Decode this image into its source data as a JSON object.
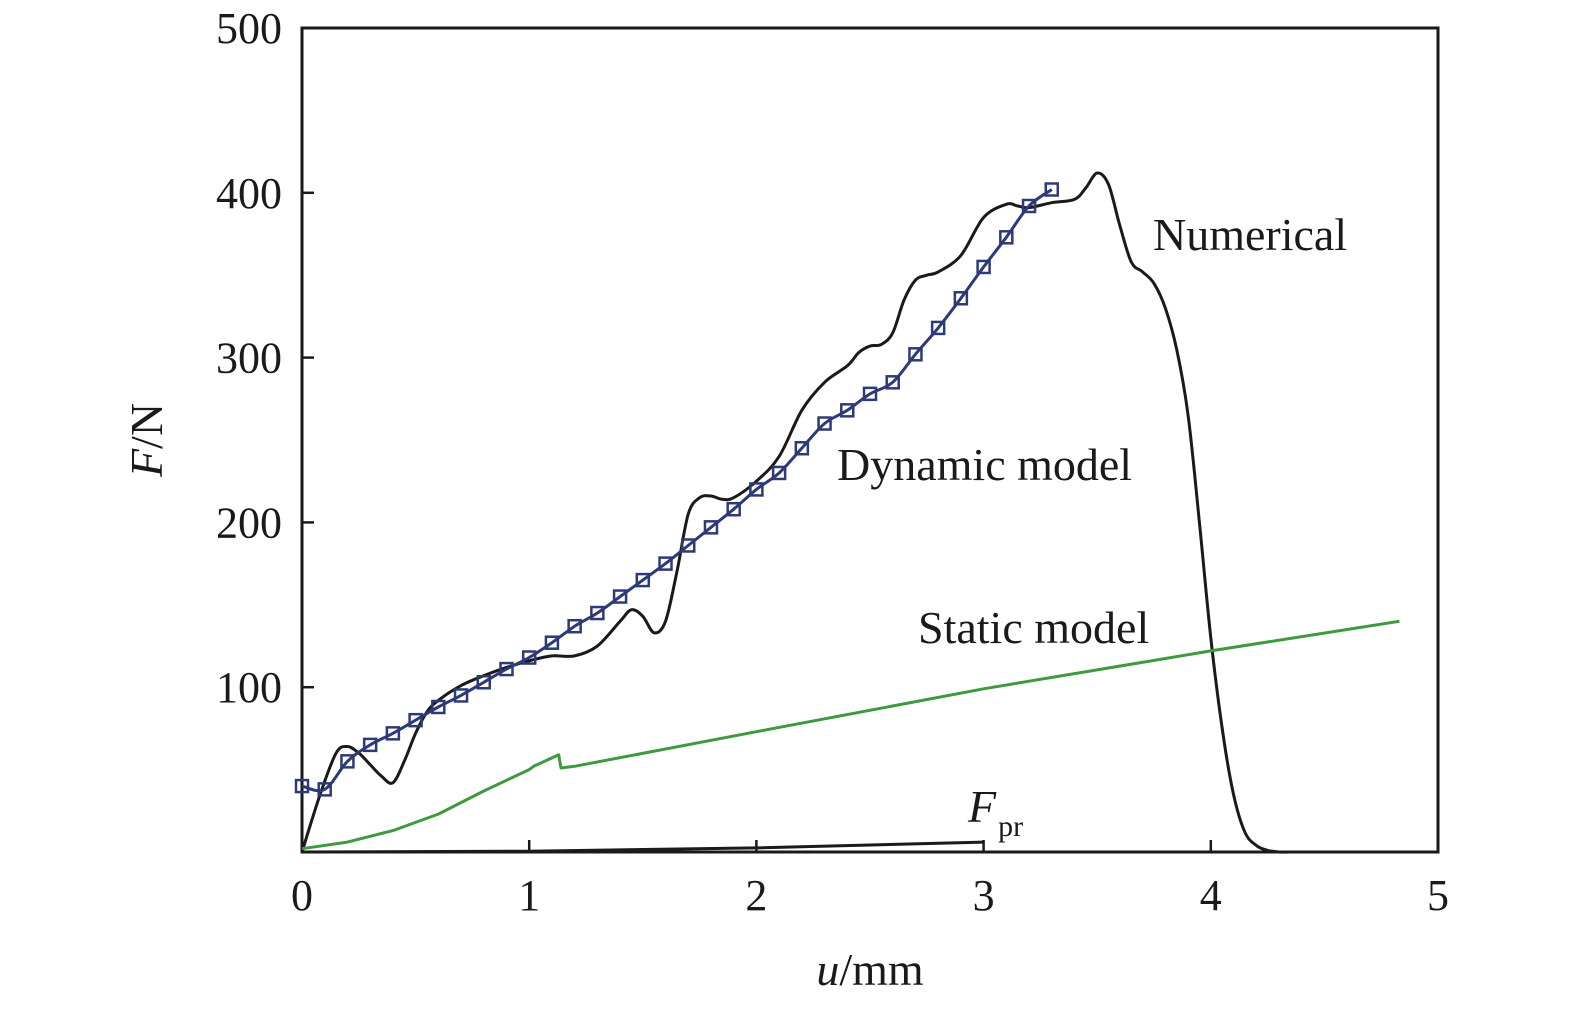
{
  "chart_data": {
    "type": "line",
    "xlabel": {
      "var": "u",
      "unit": "/mm"
    },
    "ylabel": {
      "var": "F",
      "unit": "/N"
    },
    "xlim": [
      0,
      5
    ],
    "ylim": [
      0,
      500
    ],
    "xticks": [
      "0",
      "1",
      "2",
      "3",
      "4",
      "5"
    ],
    "yticks": [
      "100",
      "200",
      "300",
      "400",
      "500"
    ],
    "xtick_values": [
      0,
      1,
      2,
      3,
      4,
      5
    ],
    "ytick_values": [
      100,
      200,
      300,
      400,
      500
    ],
    "grid": false,
    "legend": "none",
    "series": [
      {
        "label": "Numerical",
        "color": "#1a1a1a",
        "marker": "none",
        "x": [
          0,
          0.08,
          0.15,
          0.2,
          0.25,
          0.3,
          0.35,
          0.4,
          0.45,
          0.5,
          0.55,
          0.6,
          0.7,
          0.8,
          0.9,
          1.0,
          1.1,
          1.2,
          1.3,
          1.4,
          1.45,
          1.5,
          1.55,
          1.6,
          1.65,
          1.7,
          1.75,
          1.8,
          1.85,
          1.9,
          2.0,
          2.1,
          2.2,
          2.3,
          2.4,
          2.45,
          2.5,
          2.55,
          2.6,
          2.65,
          2.7,
          2.75,
          2.8,
          2.9,
          3.0,
          3.1,
          3.15,
          3.2,
          3.3,
          3.4,
          3.45,
          3.5,
          3.55,
          3.6,
          3.65,
          3.7,
          3.75,
          3.8,
          3.85,
          3.9,
          3.95,
          4.0,
          4.05,
          4.1,
          4.15,
          4.2,
          4.25,
          4.3,
          4.35,
          4.4,
          4.45,
          4.5,
          4.6,
          4.8,
          5.0
        ],
        "y": [
          0,
          35,
          60,
          64,
          60,
          53,
          46,
          42,
          55,
          72,
          85,
          92,
          101,
          107,
          112,
          116,
          119,
          119,
          125,
          140,
          147,
          143,
          133,
          140,
          170,
          205,
          215,
          216,
          214,
          215,
          225,
          240,
          268,
          285,
          295,
          303,
          307,
          308,
          315,
          335,
          347,
          350,
          352,
          362,
          385,
          393,
          392,
          391,
          394,
          396,
          403,
          412,
          405,
          380,
          358,
          352,
          345,
          330,
          305,
          265,
          200,
          130,
          75,
          35,
          12,
          4,
          1,
          0,
          0,
          0,
          0,
          0,
          0,
          0,
          0
        ]
      },
      {
        "label": "Dynamic model",
        "color": "#2e3a78",
        "marker": "square",
        "x": [
          0,
          0.1,
          0.2,
          0.3,
          0.4,
          0.5,
          0.6,
          0.7,
          0.8,
          0.9,
          1.0,
          1.1,
          1.2,
          1.3,
          1.4,
          1.5,
          1.6,
          1.7,
          1.8,
          1.9,
          2.0,
          2.1,
          2.2,
          2.3,
          2.4,
          2.5,
          2.6,
          2.7,
          2.8,
          2.9,
          3.0,
          3.1,
          3.2,
          3.3
        ],
        "y": [
          40,
          38,
          55,
          65,
          72,
          80,
          88,
          95,
          103,
          111,
          118,
          127,
          137,
          145,
          155,
          165,
          175,
          186,
          197,
          208,
          220,
          230,
          245,
          260,
          268,
          278,
          285,
          302,
          318,
          336,
          355,
          373,
          392,
          402
        ]
      },
      {
        "label": "Static model",
        "color": "#3f9a3f",
        "marker": "none",
        "x": [
          0,
          0.2,
          0.4,
          0.6,
          0.8,
          1.0,
          1.02,
          1.13,
          1.14,
          1.2,
          2.0,
          3.0,
          4.0,
          4.83
        ],
        "y": [
          2,
          6,
          13,
          23,
          37,
          50,
          52,
          59,
          51,
          52,
          73,
          99,
          122,
          140
        ]
      },
      {
        "label": "F",
        "label_sub": "pr",
        "color": "#1a1a1a",
        "marker": "none",
        "x": [
          0,
          1.0,
          2.0,
          3.0
        ],
        "y": [
          0,
          0.5,
          2.5,
          6
        ]
      }
    ]
  }
}
